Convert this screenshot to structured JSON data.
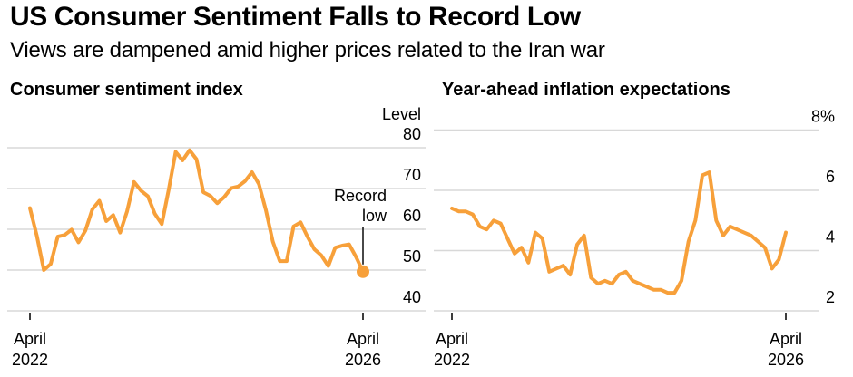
{
  "header": {
    "title": "US Consumer Sentiment Falls to Record Low",
    "subtitle": "Views are dampened amid higher prices related to the Iran war"
  },
  "colors": {
    "line_orange": "#F7A03A",
    "gridline_gray": "#D8D8D8",
    "text_black": "#000000",
    "tick_dark": "#3D3D3D",
    "annotation_line": "#1A1A1A",
    "background": "#FFFFFF"
  },
  "chart_data": [
    {
      "id": "consumer-sentiment",
      "type": "line",
      "title": "Consumer sentiment index",
      "y_axis_title": "Level",
      "ylim": [
        40,
        80
      ],
      "yticks": [
        40,
        50,
        60,
        70,
        80
      ],
      "ytick_labels": [
        "40",
        "50",
        "60",
        "70",
        "80"
      ],
      "grid": "horizontal",
      "legend": "none",
      "x_tick_labels": [
        [
          "April",
          "2022"
        ],
        [
          "April",
          "2026"
        ]
      ],
      "x": [
        "Apr 2022",
        "May 2022",
        "Jun 2022",
        "Jul 2022",
        "Aug 2022",
        "Sep 2022",
        "Oct 2022",
        "Nov 2022",
        "Dec 2022",
        "Jan 2023",
        "Feb 2023",
        "Mar 2023",
        "Apr 2023",
        "May 2023",
        "Jun 2023",
        "Jul 2023",
        "Aug 2023",
        "Sep 2023",
        "Oct 2023",
        "Nov 2023",
        "Dec 2023",
        "Jan 2024",
        "Feb 2024",
        "Mar 2024",
        "Apr 2024",
        "May 2024",
        "Jun 2024",
        "Jul 2024",
        "Aug 2024",
        "Sep 2024",
        "Oct 2024",
        "Nov 2024",
        "Dec 2024",
        "Jan 2025",
        "Feb 2025",
        "Mar 2025",
        "Apr 2025",
        "May 2025",
        "Jun 2025",
        "Jul 2025",
        "Aug 2025",
        "Sep 2025",
        "Oct 2025",
        "Nov 2025",
        "Dec 2025",
        "Jan 2026",
        "Feb 2026",
        "Mar 2026",
        "Apr 2026"
      ],
      "values": [
        65.2,
        58.4,
        50.0,
        51.5,
        58.2,
        58.6,
        59.9,
        56.8,
        59.7,
        64.9,
        67.0,
        62.0,
        63.5,
        59.2,
        64.4,
        71.6,
        69.5,
        68.1,
        63.8,
        61.3,
        69.7,
        79.0,
        76.9,
        79.4,
        77.2,
        69.1,
        68.2,
        66.4,
        67.9,
        70.1,
        70.5,
        71.8,
        74.0,
        71.1,
        64.7,
        57.0,
        52.2,
        52.2,
        60.7,
        61.7,
        58.2,
        55.1,
        53.6,
        51.0,
        55.5,
        56.0,
        56.3,
        53.2,
        49.6
      ],
      "annotation": {
        "text_lines": [
          "Record",
          "low"
        ],
        "target": "last_point",
        "marker": "dot"
      }
    },
    {
      "id": "inflation-expectations",
      "type": "line",
      "title": "Year-ahead inflation expectations",
      "y_axis_title": "",
      "ylim": [
        2,
        8
      ],
      "yticks": [
        2,
        4,
        6,
        8
      ],
      "ytick_labels": [
        "2",
        "4",
        "6",
        "8%"
      ],
      "grid": "horizontal",
      "legend": "none",
      "x_tick_labels": [
        [
          "April",
          "2022"
        ],
        [
          "April",
          "2026"
        ]
      ],
      "x": [
        "Apr 2022",
        "May 2022",
        "Jun 2022",
        "Jul 2022",
        "Aug 2022",
        "Sep 2022",
        "Oct 2022",
        "Nov 2022",
        "Dec 2022",
        "Jan 2023",
        "Feb 2023",
        "Mar 2023",
        "Apr 2023",
        "May 2023",
        "Jun 2023",
        "Jul 2023",
        "Aug 2023",
        "Sep 2023",
        "Oct 2023",
        "Nov 2023",
        "Dec 2023",
        "Jan 2024",
        "Feb 2024",
        "Mar 2024",
        "Apr 2024",
        "May 2024",
        "Jun 2024",
        "Jul 2024",
        "Aug 2024",
        "Sep 2024",
        "Oct 2024",
        "Nov 2024",
        "Dec 2024",
        "Jan 2025",
        "Feb 2025",
        "Mar 2025",
        "Apr 2025",
        "May 2025",
        "Jun 2025",
        "Jul 2025",
        "Aug 2025",
        "Sep 2025",
        "Oct 2025",
        "Nov 2025",
        "Dec 2025",
        "Jan 2026",
        "Feb 2026",
        "Mar 2026",
        "Apr 2026"
      ],
      "values": [
        5.4,
        5.3,
        5.3,
        5.2,
        4.8,
        4.7,
        5.0,
        4.9,
        4.4,
        3.9,
        4.1,
        3.6,
        4.6,
        4.4,
        3.3,
        3.4,
        3.5,
        3.2,
        4.2,
        4.5,
        3.1,
        2.9,
        3.0,
        2.9,
        3.2,
        3.3,
        3.0,
        2.9,
        2.8,
        2.7,
        2.7,
        2.6,
        2.6,
        3.0,
        4.3,
        5.0,
        6.5,
        6.6,
        5.0,
        4.5,
        4.8,
        4.7,
        4.6,
        4.5,
        4.3,
        4.1,
        3.4,
        3.7,
        4.6
      ]
    }
  ]
}
